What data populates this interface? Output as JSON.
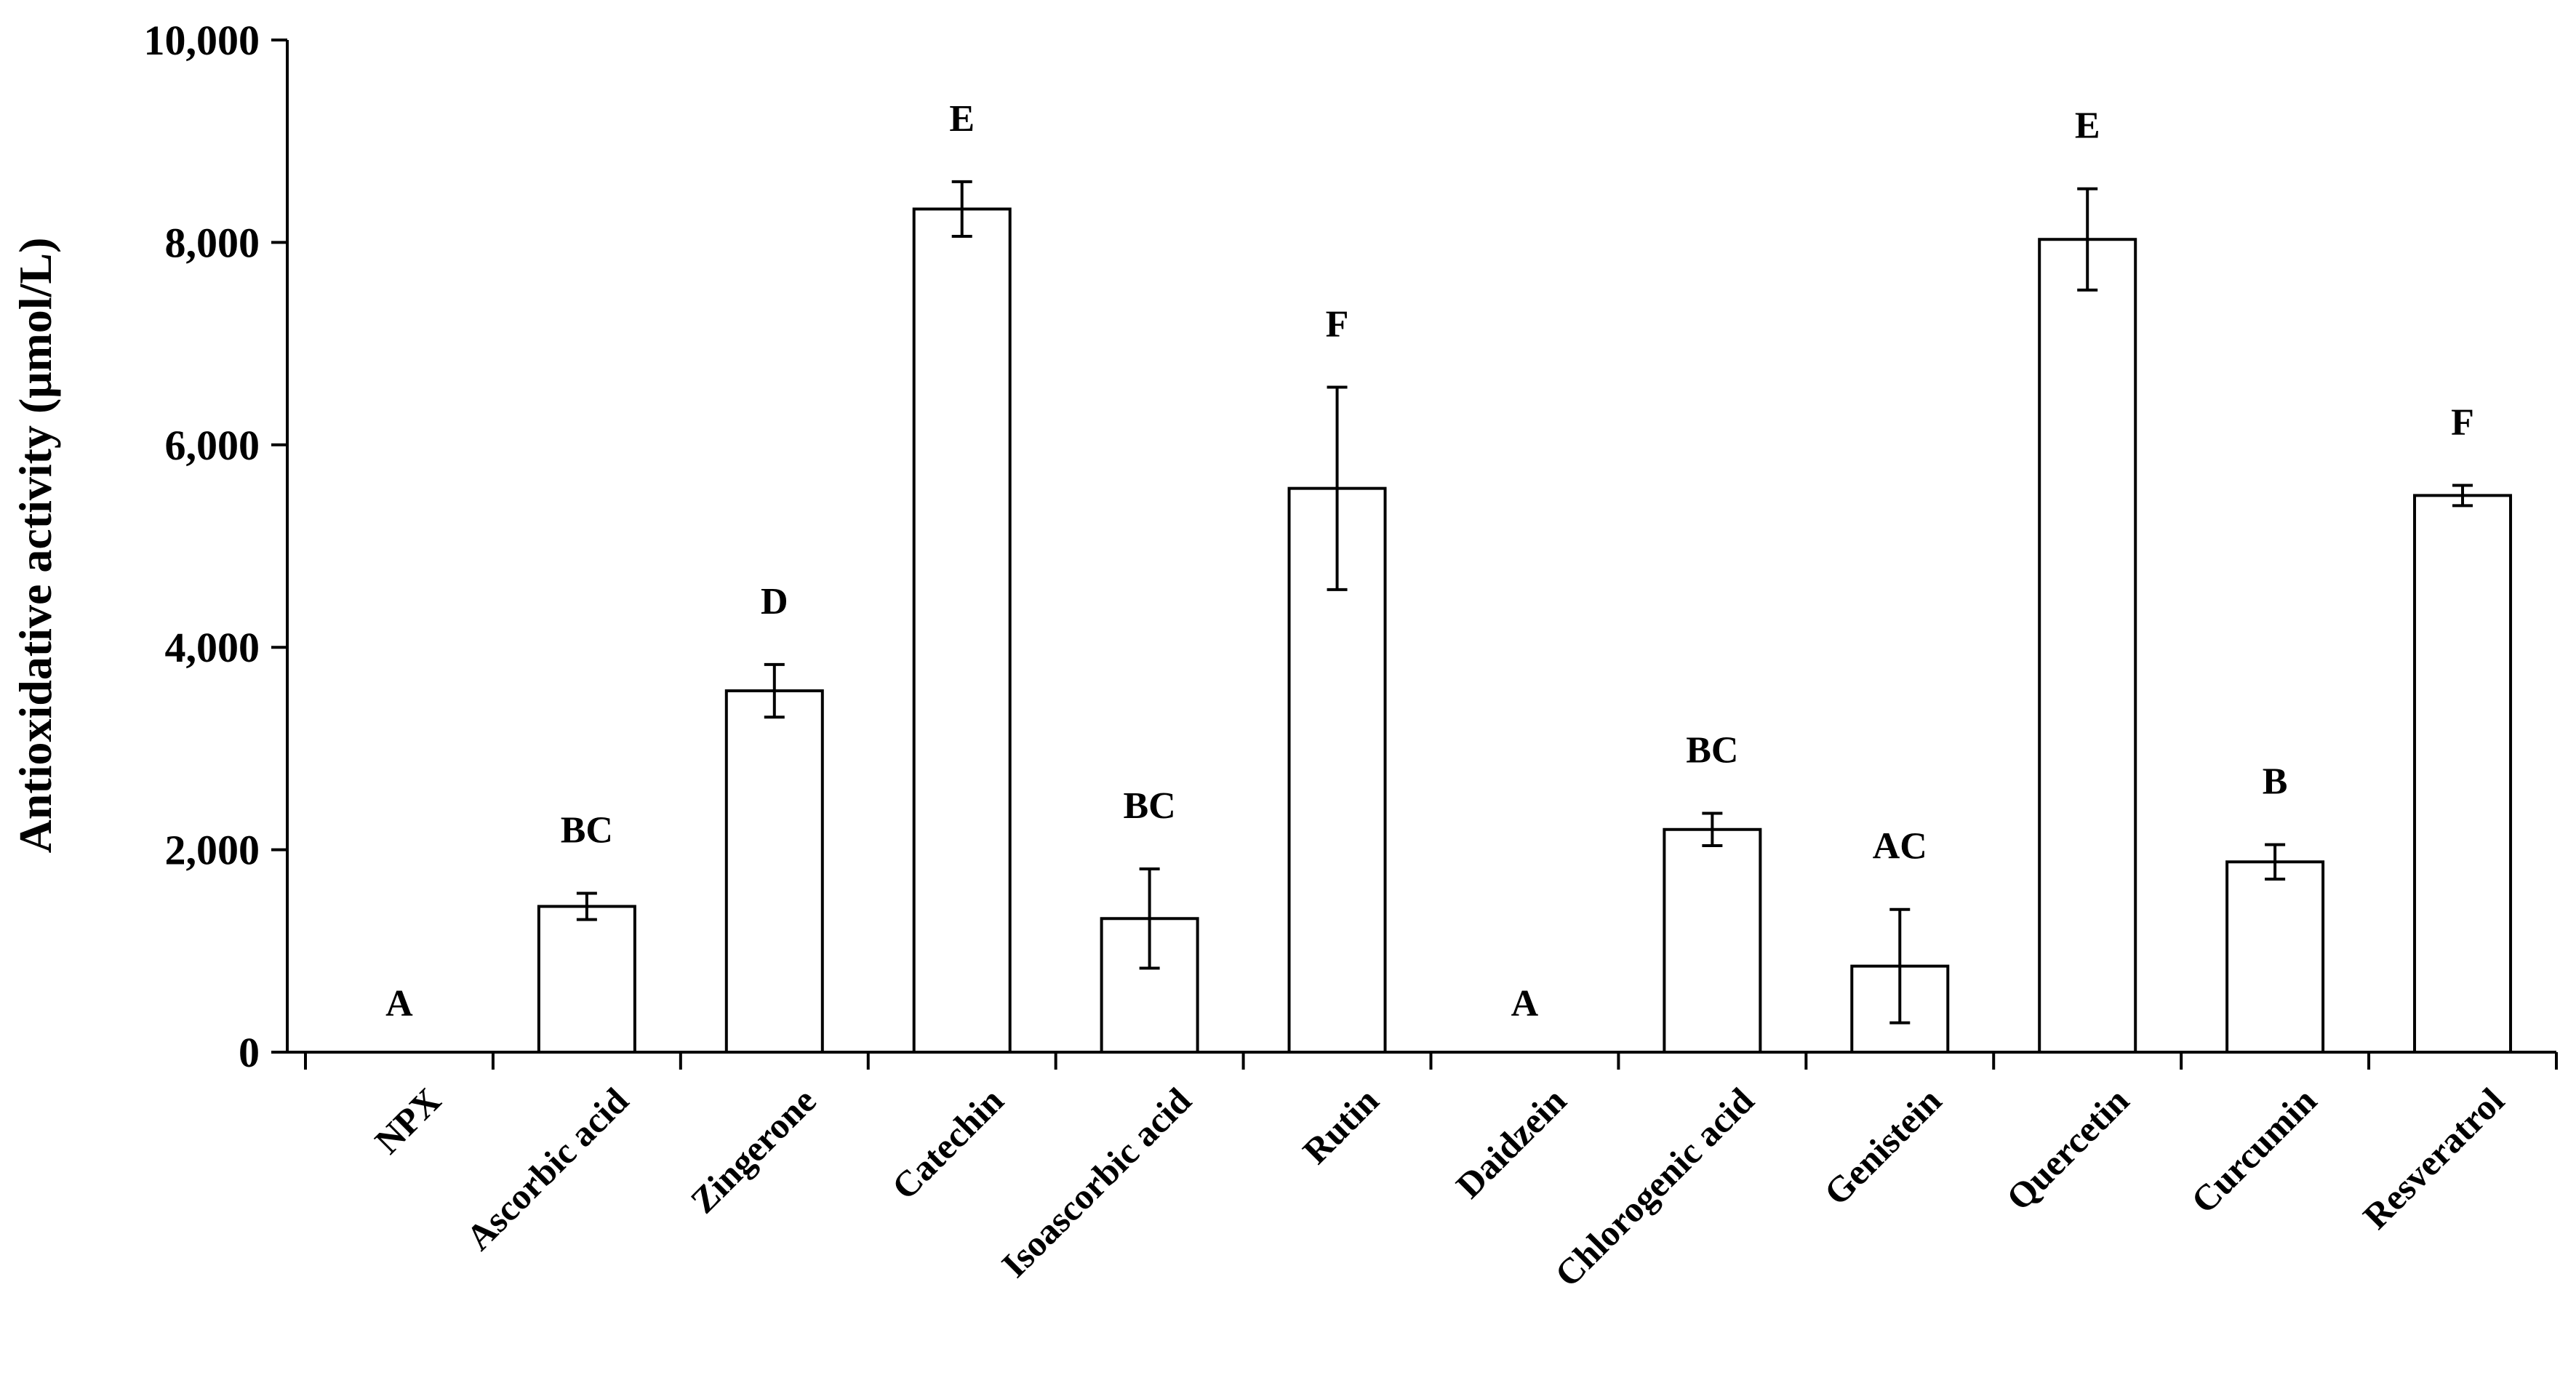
{
  "chart_data": {
    "type": "bar",
    "title": "",
    "xlabel": "",
    "ylabel": "Antioxidative activity (μmol/L)",
    "ylim": [
      0,
      10000
    ],
    "yticks": [
      0,
      2000,
      4000,
      6000,
      8000,
      10000
    ],
    "ytick_labels": [
      "0",
      "2,000",
      "4,000",
      "6,000",
      "8,000",
      "10,000"
    ],
    "grid": false,
    "categories": [
      "NPX",
      "Ascorbic acid",
      "Zingerone",
      "Catechin",
      "Isoascorbic acid",
      "Rutin",
      "Daidzein",
      "Chlorogenic acid",
      "Genistein",
      "Quercetin",
      "Curcumin",
      "Resveratrol"
    ],
    "values": [
      0,
      1440,
      3570,
      8330,
      1320,
      5570,
      0,
      2200,
      850,
      8030,
      1880,
      5500
    ],
    "errors": [
      0,
      130,
      260,
      270,
      490,
      1000,
      0,
      160,
      560,
      500,
      170,
      100
    ],
    "significance_letters": [
      "A",
      "BC",
      "D",
      "E",
      "BC",
      "F",
      "A",
      "BC",
      "AC",
      "E",
      "B",
      "F"
    ],
    "colors": {
      "bar_fill": "#ffffff",
      "stroke": "#000000"
    }
  }
}
